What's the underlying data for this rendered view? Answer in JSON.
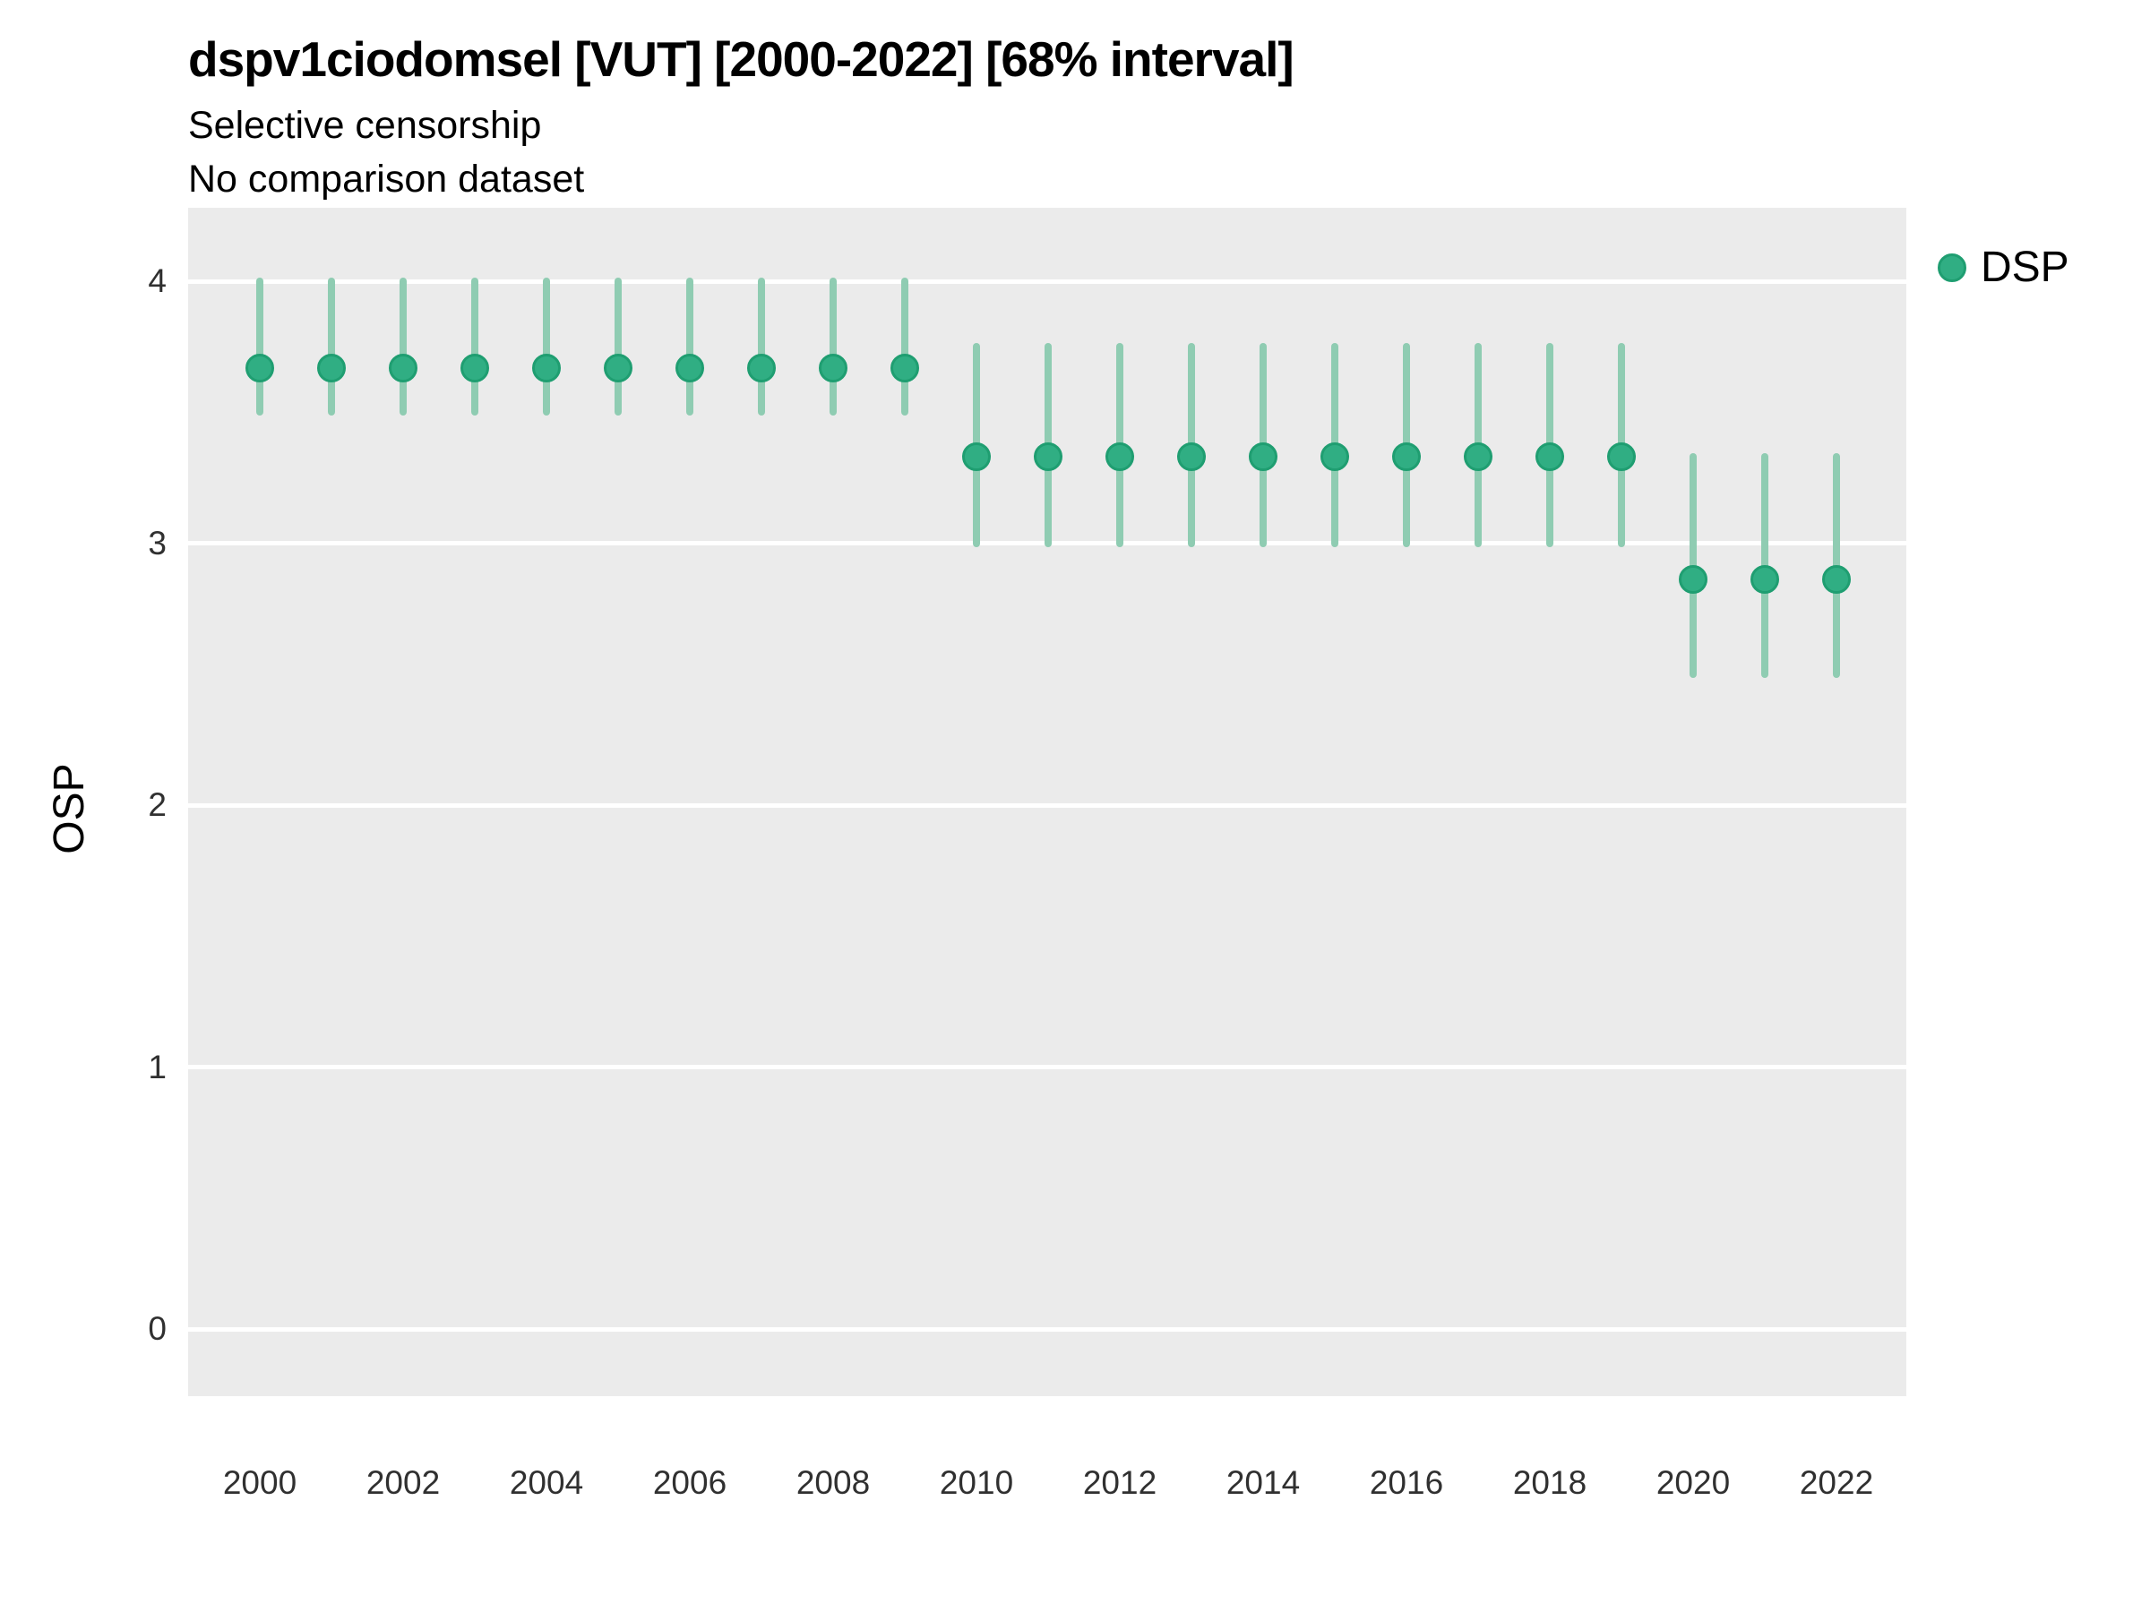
{
  "header": {
    "title": "dspv1ciodomsel [VUT] [2000-2022] [68% interval]",
    "subtitle1": "Selective censorship",
    "subtitle2": "No comparison dataset"
  },
  "axes": {
    "y_label": "OSP"
  },
  "legend": {
    "position": "right",
    "items": [
      {
        "label": "DSP",
        "marker": "circle"
      }
    ]
  },
  "colors": {
    "panel_bg": "#ebebeb",
    "grid": "#ffffff",
    "point_fill": "#30ae83",
    "point_stroke": "#1f9e71",
    "interval_bar": "#8fccb2",
    "tick_text": "#303030",
    "text": "#000000"
  },
  "chart_data": {
    "type": "scatter",
    "subtype": "pointrange-errorbar",
    "title": "dspv1ciodomsel [VUT] [2000-2022] [68% interval]",
    "subtitle": [
      "Selective censorship",
      "No comparison dataset"
    ],
    "xlabel": "",
    "ylabel": "OSP",
    "interval_label": "68% interval",
    "x_ticks": [
      2000,
      2002,
      2004,
      2006,
      2008,
      2010,
      2012,
      2014,
      2016,
      2018,
      2020,
      2022
    ],
    "y_ticks": [
      0,
      1,
      2,
      3,
      4
    ],
    "ylim_displayed": [
      -0.26,
      4.28
    ],
    "grid": "horizontal-major-only",
    "legend_position": "right",
    "series": [
      {
        "name": "DSP",
        "points": [
          {
            "year": 2000,
            "est": 3.67,
            "lo": 3.5,
            "hi": 4.0
          },
          {
            "year": 2001,
            "est": 3.67,
            "lo": 3.5,
            "hi": 4.0
          },
          {
            "year": 2002,
            "est": 3.67,
            "lo": 3.5,
            "hi": 4.0
          },
          {
            "year": 2003,
            "est": 3.67,
            "lo": 3.5,
            "hi": 4.0
          },
          {
            "year": 2004,
            "est": 3.67,
            "lo": 3.5,
            "hi": 4.0
          },
          {
            "year": 2005,
            "est": 3.67,
            "lo": 3.5,
            "hi": 4.0
          },
          {
            "year": 2006,
            "est": 3.67,
            "lo": 3.5,
            "hi": 4.0
          },
          {
            "year": 2007,
            "est": 3.67,
            "lo": 3.5,
            "hi": 4.0
          },
          {
            "year": 2008,
            "est": 3.67,
            "lo": 3.5,
            "hi": 4.0
          },
          {
            "year": 2009,
            "est": 3.67,
            "lo": 3.5,
            "hi": 4.0
          },
          {
            "year": 2010,
            "est": 3.33,
            "lo": 3.0,
            "hi": 3.75
          },
          {
            "year": 2011,
            "est": 3.33,
            "lo": 3.0,
            "hi": 3.75
          },
          {
            "year": 2012,
            "est": 3.33,
            "lo": 3.0,
            "hi": 3.75
          },
          {
            "year": 2013,
            "est": 3.33,
            "lo": 3.0,
            "hi": 3.75
          },
          {
            "year": 2014,
            "est": 3.33,
            "lo": 3.0,
            "hi": 3.75
          },
          {
            "year": 2015,
            "est": 3.33,
            "lo": 3.0,
            "hi": 3.75
          },
          {
            "year": 2016,
            "est": 3.33,
            "lo": 3.0,
            "hi": 3.75
          },
          {
            "year": 2017,
            "est": 3.33,
            "lo": 3.0,
            "hi": 3.75
          },
          {
            "year": 2018,
            "est": 3.33,
            "lo": 3.0,
            "hi": 3.75
          },
          {
            "year": 2019,
            "est": 3.33,
            "lo": 3.0,
            "hi": 3.75
          },
          {
            "year": 2020,
            "est": 2.86,
            "lo": 2.5,
            "hi": 3.33
          },
          {
            "year": 2021,
            "est": 2.86,
            "lo": 2.5,
            "hi": 3.33
          },
          {
            "year": 2022,
            "est": 2.86,
            "lo": 2.5,
            "hi": 3.33
          }
        ]
      }
    ]
  }
}
